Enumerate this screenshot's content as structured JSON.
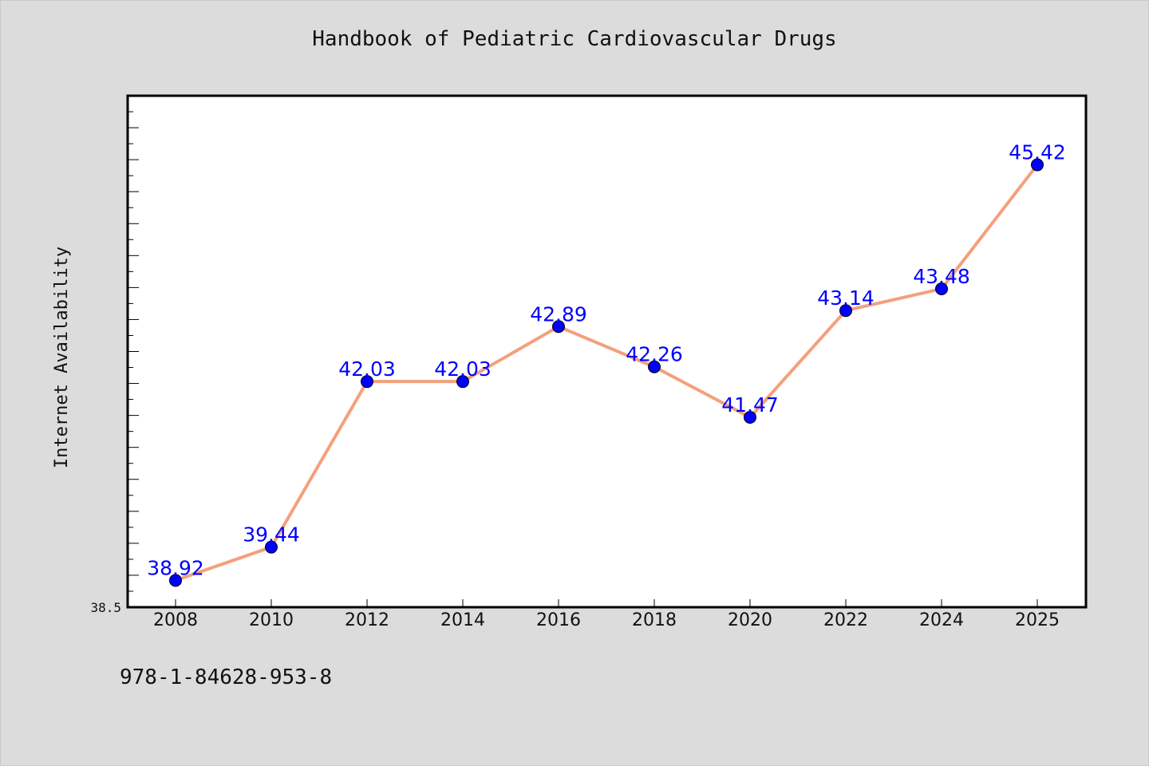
{
  "title": "Handbook of Pediatric Cardiovascular Drugs",
  "footer_text": "978-1-84628-953-8",
  "chart_data": {
    "type": "line",
    "title": "Handbook of Pediatric Cardiovascular Drugs",
    "xlabel": "",
    "ylabel": "Internet Availability",
    "categories": [
      "2008",
      "2010",
      "2012",
      "2014",
      "2016",
      "2018",
      "2020",
      "2022",
      "2024",
      "2025"
    ],
    "values": [
      38.92,
      39.44,
      42.03,
      42.03,
      42.89,
      42.26,
      41.47,
      43.14,
      43.48,
      45.42
    ],
    "data_labels": [
      "38.92",
      "39.44",
      "42.03",
      "42.03",
      "42.89",
      "42.26",
      "41.47",
      "43.14",
      "43.48",
      "45.42"
    ],
    "ylim": [
      38.5,
      46.5
    ],
    "y_tick_labels": [
      "38.5"
    ],
    "grid": false,
    "line_color": "#f4a07c",
    "marker_color": "#0000ff",
    "label_color": "#0000ff"
  }
}
